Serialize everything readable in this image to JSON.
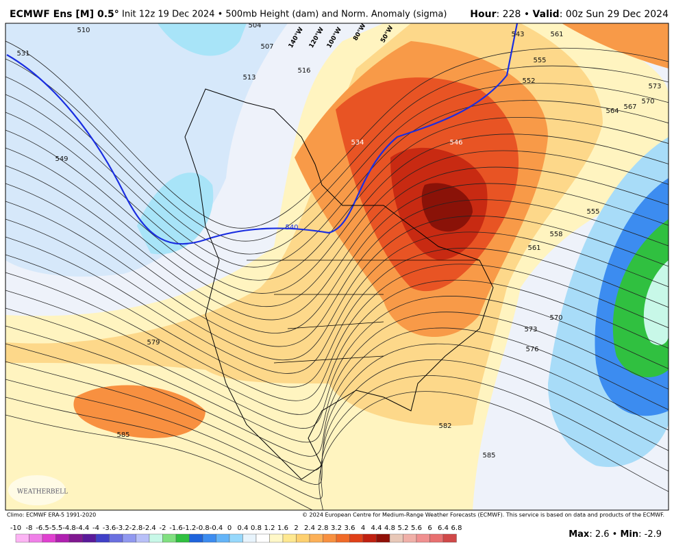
{
  "header": {
    "model": "ECMWF Ens [M] 0.5°",
    "run": "Init 12z 19 Dec 2024 • 500mb Height (dam) and Norm. Anomaly (sigma)",
    "hour_label": "Hour",
    "hour_value": ": 228 • ",
    "valid_label": "Valid",
    "valid_value": ": 00z Sun 29 Dec 2024"
  },
  "map": {
    "contour_labels": [
      531,
      549,
      510,
      504,
      507,
      513,
      516,
      534,
      540,
      546,
      543,
      552,
      555,
      561,
      573,
      570,
      567,
      564,
      555,
      558,
      561,
      570,
      573,
      576,
      579,
      585,
      582,
      585
    ],
    "longitude_labels": [
      "140°W",
      "120°W",
      "100°W",
      "80°W",
      "50°W"
    ],
    "logo": "WEATHERBELL"
  },
  "footer": {
    "climo": "Climo: ECMWF ERA-5 1991-2020",
    "copyright": "© 2024 European Centre for Medium-Range Weather Forecasts (ECMWF). This service is based on data and products of the ECMWF.",
    "max_label": "Max",
    "max_value": ": 2.6 • ",
    "min_label": "Min",
    "min_value": ": -2.9"
  },
  "colorbar": {
    "labels": [
      -10,
      -8,
      -6.5,
      -5.5,
      -4.8,
      -4.4,
      -4,
      -3.6,
      -3.2,
      -2.8,
      -2.4,
      -2,
      -1.6,
      -1.2,
      -0.8,
      -0.4,
      0,
      0.4,
      0.8,
      1.2,
      1.6,
      2,
      2.4,
      2.8,
      3.2,
      3.6,
      4,
      4.4,
      4.8,
      5.2,
      5.6,
      6,
      6.4,
      6.8
    ],
    "colors": [
      "#fcb4f4",
      "#f080e8",
      "#e040d0",
      "#b020b0",
      "#801890",
      "#5a1a9a",
      "#4040c8",
      "#6a70e0",
      "#9098f0",
      "#b8c0f8",
      "#c8f8e8",
      "#80e080",
      "#30c040",
      "#1e64dc",
      "#3c8cf0",
      "#64b4f8",
      "#96d8fc",
      "#e8f4fc",
      "#ffffff",
      "#fff8c8",
      "#fee890",
      "#fdd070",
      "#fcb058",
      "#f89040",
      "#f06a28",
      "#e04018",
      "#c02010",
      "#901008",
      "#e8c8b8",
      "#f0b0a8",
      "#f09090",
      "#e87070",
      "#d04848"
    ]
  }
}
